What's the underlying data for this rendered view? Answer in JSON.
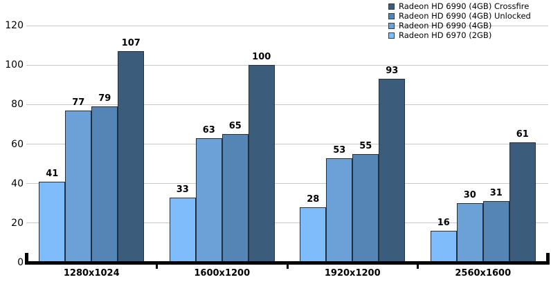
{
  "chart_data": {
    "type": "bar",
    "title": "",
    "categories": [
      "1280x1024",
      "1600x1200",
      "1920x1200",
      "2560x1600"
    ],
    "series": [
      {
        "name": "Radeon HD 6970 (2GB)",
        "color": "#7FBCFB",
        "values": [
          41,
          33,
          28,
          16
        ]
      },
      {
        "name": "Radeon HD 6990 (4GB)",
        "color": "#6BA1D7",
        "values": [
          77,
          63,
          53,
          30
        ]
      },
      {
        "name": "Radeon HD 6990 (4GB) Unlocked",
        "color": "#5585B5",
        "values": [
          79,
          65,
          55,
          31
        ]
      },
      {
        "name": "Radeon HD 6990 (4GB) Crossfire",
        "color": "#3C5C7C",
        "values": [
          107,
          100,
          93,
          61
        ]
      }
    ],
    "legend_order_top_to_bottom": [
      "Radeon HD 6990 (4GB) Crossfire",
      "Radeon HD 6990 (4GB) Unlocked",
      "Radeon HD 6990 (4GB)",
      "Radeon HD 6970 (2GB)"
    ],
    "xlabel": "",
    "ylabel": "",
    "ylim": [
      0,
      120
    ],
    "y_ticks": [
      0,
      20,
      40,
      60,
      80,
      100,
      120
    ],
    "grid": true,
    "value_labels": true,
    "legend_position": "top-right"
  },
  "colors": {
    "background": "#FFFFFF",
    "gridline": "#C8C8C8",
    "axis": "#000000",
    "bar_border": "#1F2F3F",
    "text": "#000000"
  }
}
